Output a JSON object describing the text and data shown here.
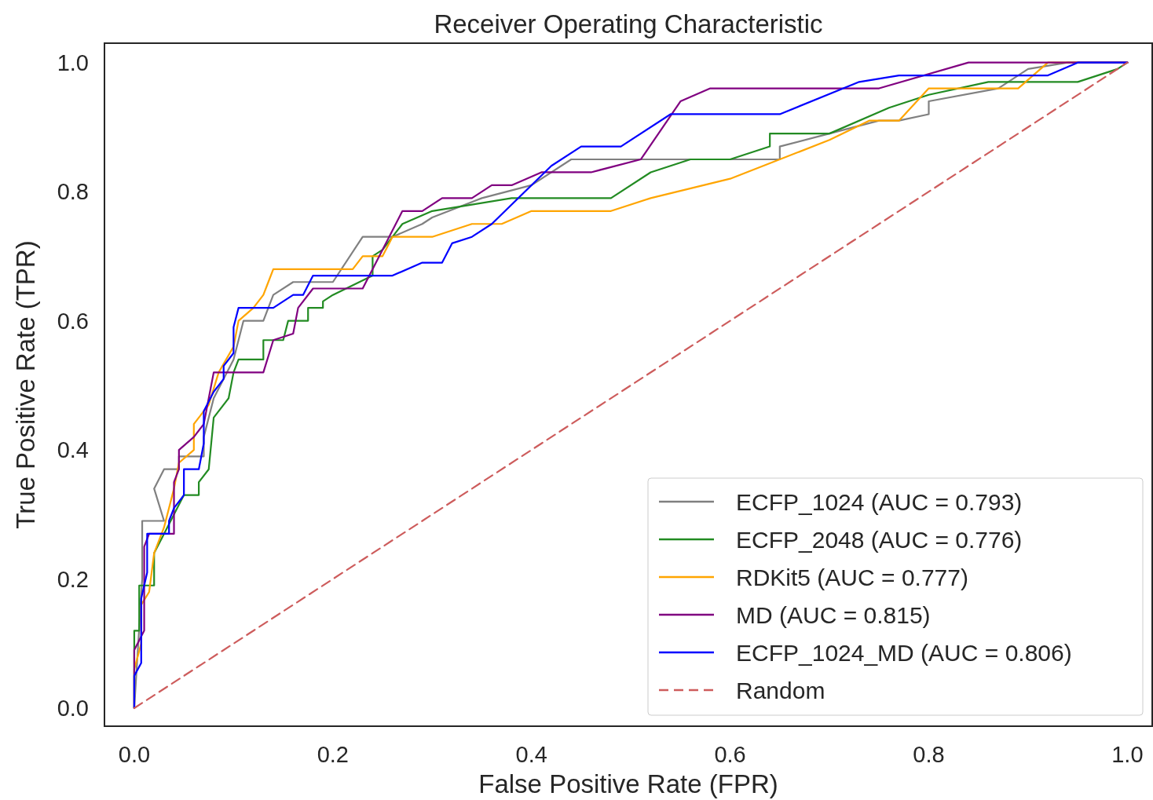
{
  "chart_data": {
    "type": "line",
    "title": "Receiver Operating Characteristic",
    "xlabel": "False Positive Rate (FPR)",
    "ylabel": "True Positive Rate (TPR)",
    "xlim": [
      -0.03,
      1.025
    ],
    "ylim": [
      -0.028,
      1.03
    ],
    "xticks": [
      {
        "value": 0,
        "label": "0.0"
      },
      0.2,
      0.4,
      0.6,
      0.8,
      {
        "value": 1,
        "label": "1.0"
      }
    ],
    "yticks": [
      {
        "value": 0,
        "label": "0.0"
      },
      0.2,
      0.4,
      0.6,
      0.8,
      {
        "value": 1,
        "label": "1.0"
      }
    ],
    "grid": false,
    "legend": "bottom right",
    "marker": "none",
    "line_style": "solid",
    "series": [
      {
        "name": "ECFP_1024 (AUC = 0.793)",
        "color": "#808080",
        "x": [
          0,
          0.004,
          0.008,
          0.008,
          0.03,
          0.02,
          0.03,
          0.045,
          0.045,
          0.07,
          0.07,
          0.08,
          0.1,
          0.11,
          0.13,
          0.14,
          0.16,
          0.2,
          0.23,
          0.26,
          0.29,
          0.3,
          0.35,
          0.4,
          0.44,
          0.65,
          0.65,
          0.7,
          0.75,
          0.77,
          0.8,
          0.8,
          0.87,
          0.9,
          0.94,
          1
        ],
        "values": [
          0,
          0.1,
          0.2,
          0.29,
          0.29,
          0.34,
          0.37,
          0.37,
          0.39,
          0.39,
          0.42,
          0.48,
          0.54,
          0.6,
          0.6,
          0.64,
          0.66,
          0.66,
          0.73,
          0.73,
          0.75,
          0.76,
          0.79,
          0.81,
          0.85,
          0.85,
          0.87,
          0.89,
          0.91,
          0.91,
          0.92,
          0.94,
          0.96,
          0.99,
          1,
          1
        ]
      },
      {
        "name": "ECFP_2048 (AUC = 0.776)",
        "color": "#228b22",
        "x": [
          0,
          0,
          0.005,
          0.005,
          0.02,
          0.02,
          0.03,
          0.04,
          0.05,
          0.065,
          0.065,
          0.075,
          0.08,
          0.095,
          0.1,
          0.105,
          0.13,
          0.13,
          0.15,
          0.155,
          0.175,
          0.175,
          0.19,
          0.19,
          0.2,
          0.24,
          0.24,
          0.25,
          0.27,
          0.3,
          0.34,
          0.38,
          0.48,
          0.52,
          0.56,
          0.6,
          0.64,
          0.64,
          0.7,
          0.76,
          0.8,
          0.86,
          0.95,
          0.99,
          1
        ],
        "values": [
          0,
          0.12,
          0.12,
          0.19,
          0.19,
          0.24,
          0.27,
          0.3,
          0.33,
          0.33,
          0.35,
          0.37,
          0.45,
          0.48,
          0.52,
          0.54,
          0.54,
          0.57,
          0.57,
          0.6,
          0.6,
          0.62,
          0.62,
          0.63,
          0.64,
          0.67,
          0.7,
          0.71,
          0.75,
          0.77,
          0.78,
          0.79,
          0.79,
          0.83,
          0.85,
          0.85,
          0.87,
          0.89,
          0.89,
          0.93,
          0.95,
          0.97,
          0.97,
          0.99,
          1
        ]
      },
      {
        "name": "RDKit5 (AUC = 0.777)",
        "color": "#ffa500",
        "x": [
          0,
          0,
          0.007,
          0.007,
          0.015,
          0.02,
          0.03,
          0.04,
          0.045,
          0.06,
          0.06,
          0.075,
          0.085,
          0.1,
          0.105,
          0.12,
          0.13,
          0.135,
          0.14,
          0.22,
          0.23,
          0.25,
          0.26,
          0.3,
          0.34,
          0.37,
          0.4,
          0.48,
          0.52,
          0.6,
          0.7,
          0.74,
          0.77,
          0.8,
          0.89,
          0.92,
          1
        ],
        "values": [
          0,
          0.06,
          0.1,
          0.16,
          0.18,
          0.24,
          0.28,
          0.34,
          0.38,
          0.4,
          0.44,
          0.47,
          0.52,
          0.56,
          0.6,
          0.62,
          0.64,
          0.66,
          0.68,
          0.68,
          0.7,
          0.7,
          0.73,
          0.73,
          0.75,
          0.75,
          0.77,
          0.77,
          0.79,
          0.82,
          0.88,
          0.91,
          0.91,
          0.96,
          0.96,
          1,
          1
        ]
      },
      {
        "name": "MD (AUC = 0.815)",
        "color": "#800080",
        "x": [
          0,
          0,
          0.01,
          0.01,
          0.015,
          0.04,
          0.04,
          0.045,
          0.045,
          0.06,
          0.07,
          0.075,
          0.08,
          0.13,
          0.14,
          0.16,
          0.165,
          0.18,
          0.23,
          0.27,
          0.29,
          0.31,
          0.34,
          0.36,
          0.38,
          0.41,
          0.46,
          0.51,
          0.55,
          0.58,
          0.75,
          0.84,
          1
        ],
        "values": [
          0,
          0.09,
          0.12,
          0.25,
          0.27,
          0.27,
          0.35,
          0.37,
          0.4,
          0.42,
          0.44,
          0.48,
          0.52,
          0.52,
          0.57,
          0.58,
          0.62,
          0.65,
          0.65,
          0.77,
          0.77,
          0.79,
          0.79,
          0.81,
          0.81,
          0.83,
          0.83,
          0.85,
          0.94,
          0.96,
          0.96,
          1,
          1
        ]
      },
      {
        "name": "ECFP_1024_MD (AUC = 0.806)",
        "color": "#0000ff",
        "x": [
          0,
          0,
          0.007,
          0.007,
          0.013,
          0.013,
          0.035,
          0.035,
          0.04,
          0.05,
          0.05,
          0.065,
          0.07,
          0.07,
          0.08,
          0.085,
          0.09,
          0.09,
          0.1,
          0.1,
          0.105,
          0.14,
          0.16,
          0.17,
          0.18,
          0.26,
          0.29,
          0.31,
          0.32,
          0.34,
          0.36,
          0.42,
          0.45,
          0.49,
          0.54,
          0.65,
          0.73,
          0.77,
          0.92,
          0.95,
          1
        ],
        "values": [
          0,
          0.05,
          0.07,
          0.17,
          0.21,
          0.27,
          0.27,
          0.29,
          0.31,
          0.33,
          0.37,
          0.37,
          0.41,
          0.46,
          0.49,
          0.5,
          0.51,
          0.53,
          0.55,
          0.59,
          0.62,
          0.62,
          0.64,
          0.64,
          0.67,
          0.67,
          0.69,
          0.69,
          0.72,
          0.73,
          0.75,
          0.84,
          0.87,
          0.87,
          0.92,
          0.92,
          0.97,
          0.98,
          0.98,
          1,
          1
        ]
      },
      {
        "name": "Random",
        "color": "#cd5c5c",
        "line_style": "dashed",
        "x": [
          0,
          1
        ],
        "values": [
          0,
          1
        ]
      }
    ]
  }
}
